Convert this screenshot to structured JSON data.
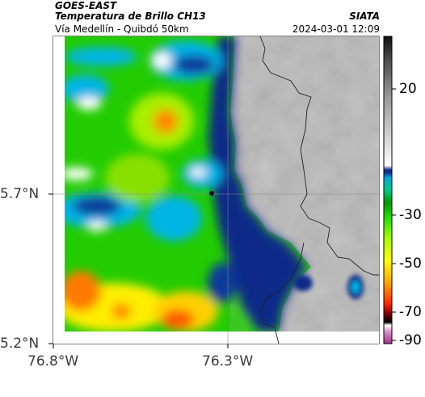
{
  "header": {
    "satellite": "GOES-EAST",
    "product": "Temperatura de Brillo CH13",
    "route": "Vía Medellín - Quibdó 50km",
    "agency": "SIATA",
    "timestamp": "2024-03-01 12:09"
  },
  "axes": {
    "lat_labels": [
      "5.7°N",
      "5.2°N"
    ],
    "lon_labels": [
      "76.8°W",
      "76.3°W"
    ]
  },
  "colorbar": {
    "labels": [
      "20",
      "-30",
      "-50",
      "-70",
      "-90"
    ],
    "stops": [
      "#a7308f",
      "#d894c8",
      "#ffffff",
      "#000000",
      "#8b0000",
      "#ff2a00",
      "#ff9900",
      "#ffff00",
      "#aaff00",
      "#22dd00",
      "#009900",
      "#00cc88",
      "#00aadd",
      "#1a3a9a",
      "#0a2a88",
      "#ffffff",
      "#d8d8d8",
      "#9a9a9a",
      "#505050",
      "#111111"
    ]
  },
  "colors": {
    "cold_blue": "#0a2a88",
    "cyan": "#00b4e6",
    "green": "#22cc00",
    "yellow": "#ffee00",
    "orange": "#ff7a00",
    "warm_gray": "#b8b8b8"
  }
}
